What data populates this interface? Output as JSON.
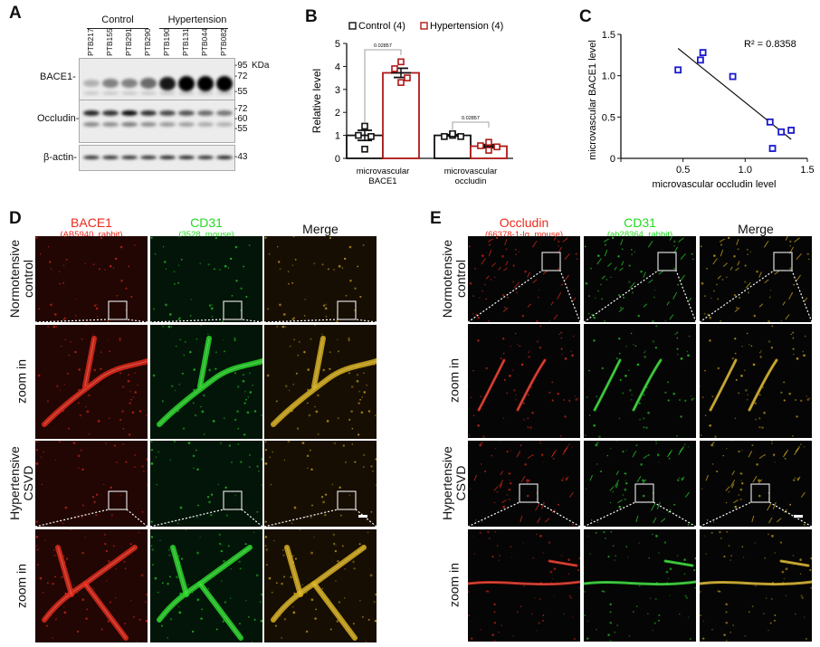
{
  "panel_labels": {
    "a": "A",
    "b": "B",
    "c": "C",
    "d": "D",
    "e": "E"
  },
  "panel_a": {
    "groups": [
      "Control",
      "Hypertension"
    ],
    "lanes": [
      "PTB217",
      "PTB155",
      "PTB291",
      "PTB290",
      "PTB190",
      "PTB131",
      "PTB044",
      "PTB082"
    ],
    "rows": [
      {
        "label": "BACE1-",
        "markers": [
          "-95",
          "-72",
          "-55"
        ]
      },
      {
        "label": "Occludin-",
        "markers": [
          "-72",
          "-60",
          "-55"
        ]
      },
      {
        "label": "β-actin-",
        "markers": [
          "-43"
        ]
      }
    ],
    "kda_label": "KDa"
  },
  "chart_data": [
    {
      "type": "bar",
      "title": "",
      "ylabel": "Relative level",
      "ylim": [
        0,
        5
      ],
      "yticks": [
        0,
        1,
        2,
        3,
        4,
        5
      ],
      "categories": [
        "microvascular\nBACE1",
        "microvascular\noccludin"
      ],
      "category_lines": [
        [
          "microvascular",
          "BACE1"
        ],
        [
          "microvascular",
          "occludin"
        ]
      ],
      "legend": {
        "position": "top",
        "entries": [
          "Control (4)",
          "Hypertension (4)"
        ]
      },
      "series": [
        {
          "name": "Control (4)",
          "color": "#111111",
          "values": [
            1.0,
            1.0
          ],
          "sem": [
            0.22,
            0.03
          ],
          "points": [
            [
              1.4,
              1.0,
              0.95,
              0.4
            ],
            [
              1.0,
              0.95,
              0.95,
              1.07
            ]
          ]
        },
        {
          "name": "Hypertension (4)",
          "color": "#b01818",
          "values": [
            3.72,
            0.53
          ],
          "sem": [
            0.2,
            0.07
          ],
          "points": [
            [
              4.2,
              3.9,
              3.5,
              3.3
            ],
            [
              0.7,
              0.55,
              0.5,
              0.35
            ]
          ]
        }
      ],
      "annotations": [
        "0.02857",
        "0.02857"
      ]
    },
    {
      "type": "scatter",
      "xlabel": "microvascular occludin level",
      "ylabel": "microvascular BACE1 level",
      "xlim": [
        0,
        1.5
      ],
      "ylim": [
        0,
        1.5
      ],
      "xticks": [
        "0.5",
        "1.0",
        "1.5"
      ],
      "yticks": [
        "0",
        "0.5",
        "1.0",
        "1.5"
      ],
      "points": [
        [
          0.46,
          1.07
        ],
        [
          0.64,
          1.19
        ],
        [
          0.66,
          1.28
        ],
        [
          0.9,
          0.99
        ],
        [
          1.2,
          0.44
        ],
        [
          1.29,
          0.32
        ],
        [
          1.37,
          0.34
        ],
        [
          1.22,
          0.12
        ]
      ],
      "fit_line": [
        [
          0.46,
          1.33
        ],
        [
          1.37,
          0.23
        ]
      ],
      "annotation": "R² = 0.8358",
      "color": "#1a1acc"
    }
  ],
  "panel_d": {
    "columns": [
      {
        "title": "BACE1",
        "subtitle": "(AB5940, rabbit)",
        "color": "#ee2a1a"
      },
      {
        "title": "CD31",
        "subtitle": "(3528, mouse)",
        "color": "#22dd22"
      },
      {
        "title": "Merge",
        "subtitle": "",
        "color": "#111111"
      }
    ],
    "rows": [
      {
        "line1": "Normotensive",
        "line2": "control"
      },
      {
        "line1": "zoom in",
        "line2": ""
      },
      {
        "line1": "Hypertensive",
        "line2": "CSVD"
      },
      {
        "line1": "zoom in",
        "line2": ""
      }
    ]
  },
  "panel_e": {
    "columns": [
      {
        "title": "Occludin",
        "subtitle": "(66378-1-Ig, mouse)",
        "color": "#ee2a1a"
      },
      {
        "title": "CD31",
        "subtitle": "(ab28364, rabbit)",
        "color": "#22dd22"
      },
      {
        "title": "Merge",
        "subtitle": "",
        "color": "#111111"
      }
    ],
    "rows": [
      {
        "line1": "Normotensive",
        "line2": "control"
      },
      {
        "line1": "zoom in",
        "line2": ""
      },
      {
        "line1": "Hypertensive",
        "line2": "CSVD"
      },
      {
        "line1": "zoom in",
        "line2": ""
      }
    ]
  }
}
